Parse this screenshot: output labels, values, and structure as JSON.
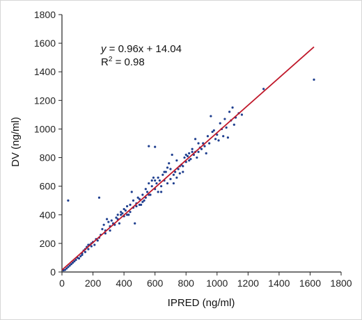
{
  "chart_data": {
    "type": "scatter",
    "xlabel": "IPRED (ng/ml)",
    "ylabel": "DV (ng/ml)",
    "xlim": [
      0,
      1800
    ],
    "ylim": [
      0,
      1800
    ],
    "x_ticks": [
      "0",
      "200",
      "400",
      "600",
      "800",
      "1000",
      "1200",
      "1400",
      "1600",
      "1800"
    ],
    "y_ticks": [
      "0",
      "200",
      "400",
      "600",
      "800",
      "1000",
      "1200",
      "1400",
      "1600",
      "1800"
    ],
    "grid": false,
    "annotation": {
      "equation_prefix": "y",
      "equation_rest": " = 0.96x + 14.04",
      "r2_prefix": "R",
      "r2_sup": "2",
      "r2_rest": " = 0.98"
    },
    "regression_line": {
      "slope": 0.96,
      "intercept": 14.04,
      "x_range": [
        0,
        1625
      ],
      "color": "#c0182a"
    },
    "point_color": "#1f3f8f",
    "points": [
      [
        40,
        500
      ],
      [
        240,
        520
      ],
      [
        560,
        880
      ],
      [
        600,
        875
      ],
      [
        1300,
        1280
      ],
      [
        1625,
        1345
      ],
      [
        20,
        15
      ],
      [
        40,
        35
      ],
      [
        60,
        55
      ],
      [
        80,
        75
      ],
      [
        100,
        100
      ],
      [
        110,
        95
      ],
      [
        120,
        110
      ],
      [
        130,
        130
      ],
      [
        140,
        150
      ],
      [
        150,
        140
      ],
      [
        160,
        175
      ],
      [
        170,
        160
      ],
      [
        180,
        190
      ],
      [
        190,
        180
      ],
      [
        200,
        210
      ],
      [
        220,
        230
      ],
      [
        240,
        240
      ],
      [
        250,
        260
      ],
      [
        260,
        300
      ],
      [
        270,
        330
      ],
      [
        280,
        290
      ],
      [
        290,
        370
      ],
      [
        300,
        350
      ],
      [
        310,
        320
      ],
      [
        320,
        360
      ],
      [
        340,
        330
      ],
      [
        350,
        380
      ],
      [
        360,
        400
      ],
      [
        370,
        340
      ],
      [
        380,
        420
      ],
      [
        390,
        410
      ],
      [
        400,
        440
      ],
      [
        410,
        430
      ],
      [
        420,
        460
      ],
      [
        430,
        400
      ],
      [
        440,
        470
      ],
      [
        450,
        560
      ],
      [
        460,
        500
      ],
      [
        470,
        340
      ],
      [
        480,
        480
      ],
      [
        490,
        520
      ],
      [
        500,
        510
      ],
      [
        510,
        470
      ],
      [
        520,
        540
      ],
      [
        530,
        500
      ],
      [
        540,
        580
      ],
      [
        550,
        560
      ],
      [
        560,
        620
      ],
      [
        570,
        540
      ],
      [
        580,
        600
      ],
      [
        590,
        660
      ],
      [
        600,
        580
      ],
      [
        610,
        620
      ],
      [
        620,
        560
      ],
      [
        630,
        640
      ],
      [
        640,
        600
      ],
      [
        650,
        680
      ],
      [
        660,
        640
      ],
      [
        670,
        700
      ],
      [
        680,
        620
      ],
      [
        690,
        760
      ],
      [
        700,
        650
      ],
      [
        710,
        820
      ],
      [
        720,
        680
      ],
      [
        730,
        700
      ],
      [
        740,
        660
      ],
      [
        750,
        720
      ],
      [
        760,
        690
      ],
      [
        770,
        750
      ],
      [
        780,
        740
      ],
      [
        790,
        800
      ],
      [
        800,
        770
      ],
      [
        810,
        810
      ],
      [
        820,
        830
      ],
      [
        830,
        790
      ],
      [
        840,
        840
      ],
      [
        850,
        820
      ],
      [
        860,
        930
      ],
      [
        870,
        800
      ],
      [
        880,
        840
      ],
      [
        890,
        870
      ],
      [
        900,
        860
      ],
      [
        910,
        900
      ],
      [
        920,
        880
      ],
      [
        930,
        830
      ],
      [
        940,
        950
      ],
      [
        950,
        900
      ],
      [
        960,
        1090
      ],
      [
        970,
        980
      ],
      [
        980,
        990
      ],
      [
        990,
        930
      ],
      [
        1000,
        960
      ],
      [
        1010,
        920
      ],
      [
        1020,
        1040
      ],
      [
        1030,
        1000
      ],
      [
        1040,
        950
      ],
      [
        1050,
        1070
      ],
      [
        1060,
        1010
      ],
      [
        1070,
        940
      ],
      [
        1080,
        1120
      ],
      [
        1090,
        1060
      ],
      [
        1100,
        1150
      ],
      [
        1110,
        1030
      ],
      [
        1120,
        1080
      ],
      [
        1140,
        1110
      ],
      [
        1160,
        1100
      ],
      [
        640,
        560
      ],
      [
        660,
        700
      ],
      [
        700,
        720
      ],
      [
        720,
        620
      ],
      [
        760,
        740
      ],
      [
        540,
        520
      ],
      [
        560,
        540
      ],
      [
        580,
        640
      ],
      [
        600,
        640
      ],
      [
        620,
        660
      ],
      [
        680,
        730
      ],
      [
        740,
        780
      ],
      [
        780,
        700
      ],
      [
        800,
        820
      ],
      [
        820,
        780
      ],
      [
        840,
        860
      ],
      [
        860,
        840
      ],
      [
        880,
        900
      ],
      [
        460,
        450
      ],
      [
        480,
        460
      ],
      [
        500,
        470
      ],
      [
        520,
        490
      ],
      [
        440,
        420
      ],
      [
        420,
        400
      ],
      [
        400,
        390
      ],
      [
        380,
        400
      ],
      [
        360,
        370
      ],
      [
        330,
        340
      ],
      [
        310,
        290
      ],
      [
        280,
        270
      ],
      [
        230,
        220
      ],
      [
        210,
        190
      ],
      [
        190,
        200
      ],
      [
        170,
        190
      ],
      [
        150,
        160
      ],
      [
        130,
        120
      ],
      [
        90,
        85
      ],
      [
        70,
        65
      ],
      [
        50,
        45
      ],
      [
        30,
        25
      ],
      [
        10,
        12
      ]
    ]
  }
}
